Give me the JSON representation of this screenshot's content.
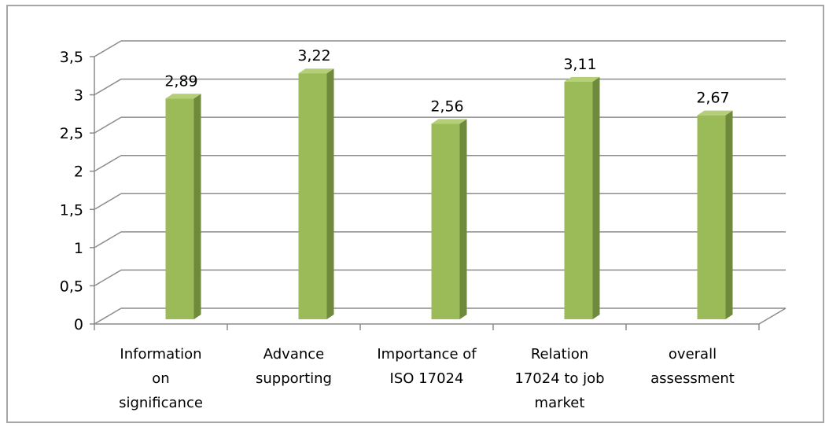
{
  "chart_data": {
    "type": "bar",
    "style": "3d-column",
    "categories": [
      [
        "Information",
        "on",
        "significance"
      ],
      [
        "Advance",
        "supporting"
      ],
      [
        "Importance of",
        "ISO 17024"
      ],
      [
        "Relation",
        "17024 to job",
        "market"
      ],
      [
        "overall",
        "assessment"
      ]
    ],
    "values": [
      2.89,
      3.22,
      2.56,
      3.11,
      2.67
    ],
    "data_labels": [
      "2,89",
      "3,22",
      "2,56",
      "3,11",
      "2,67"
    ],
    "y_tick_labels": [
      "0",
      "0,5",
      "1",
      "1,5",
      "2",
      "2,5",
      "3",
      "3,5"
    ],
    "ylim": [
      0,
      3.5
    ],
    "grid": true,
    "legend": false,
    "title": "",
    "xlabel": "",
    "ylabel": "",
    "colors": {
      "bar_front": "#9bbb59",
      "bar_side": "#6f8a3c",
      "bar_top": "#b4cf77",
      "grid": "#8c8c8c",
      "frame": "#a6a6a6"
    }
  }
}
